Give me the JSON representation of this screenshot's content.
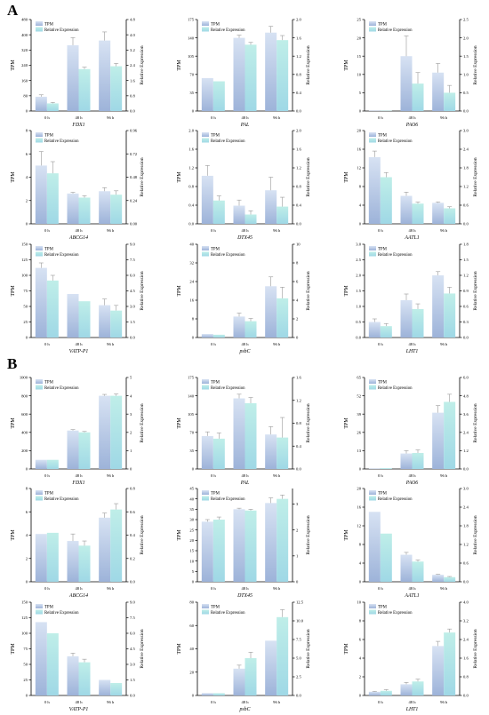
{
  "panels": [
    {
      "letter": "A"
    },
    {
      "letter": "B"
    }
  ],
  "colors": {
    "tpm_top": "#d7e2f3",
    "tpm_bottom": "#9db3d9",
    "rel_top": "#bfeee8",
    "rel_bottom": "#9fd8e6",
    "err": "#999999"
  },
  "chart_data": [
    {
      "type": "bar",
      "panel": "A",
      "xlabel": "FDX1",
      "categories": [
        "0 h",
        "48 h",
        "96 h"
      ],
      "ylabel": "TPM",
      "ylabel2": "Relative Expression",
      "ylim": [
        0,
        480
      ],
      "yticks": [
        0,
        80,
        160,
        240,
        320,
        400,
        480
      ],
      "y2lim": [
        0,
        4.8
      ],
      "y2ticks": [
        "0.0",
        "0.8",
        "1.6",
        "2.4",
        "3.2",
        "4.0",
        "4.8"
      ],
      "series": [
        {
          "name": "TPM",
          "values": [
            75,
            345,
            370
          ],
          "errors": [
            10,
            40,
            45
          ]
        },
        {
          "name": "Relative Expression",
          "values": [
            0.4,
            2.2,
            2.35
          ],
          "errors": [
            0.05,
            0.1,
            0.15
          ]
        }
      ]
    },
    {
      "type": "bar",
      "panel": "A",
      "xlabel": "PAL",
      "categories": [
        "0 h",
        "48 h",
        "96 h"
      ],
      "ylabel": "TPM",
      "ylabel2": "Relative Expression",
      "ylim": [
        0,
        175
      ],
      "yticks": [
        0,
        35,
        70,
        105,
        140,
        175
      ],
      "y2lim": [
        0,
        2.0
      ],
      "y2ticks": [
        "0.0",
        "0.4",
        "0.8",
        "1.2",
        "1.6",
        "2.0"
      ],
      "series": [
        {
          "name": "TPM",
          "values": [
            63,
            140,
            150
          ],
          "errors": [
            0,
            5,
            12
          ]
        },
        {
          "name": "Relative Expression",
          "values": [
            0.65,
            1.45,
            1.55
          ],
          "errors": [
            0,
            0.05,
            0.1
          ]
        }
      ]
    },
    {
      "type": "bar",
      "panel": "A",
      "xlabel": "PAO6",
      "categories": [
        "0 h",
        "48 h",
        "96 h"
      ],
      "ylabel": "TPM",
      "ylabel2": "Relative Expression",
      "ylim": [
        0,
        25
      ],
      "yticks": [
        0,
        5,
        10,
        15,
        20,
        25
      ],
      "y2lim": [
        0,
        2.5
      ],
      "y2ticks": [
        "0.0",
        "0.5",
        "1.0",
        "1.5",
        "2.0",
        "2.5"
      ],
      "series": [
        {
          "name": "TPM",
          "values": [
            0.1,
            15,
            10.5
          ],
          "errors": [
            0,
            5.5,
            2.5
          ]
        },
        {
          "name": "Relative Expression",
          "values": [
            0.01,
            0.75,
            0.5
          ],
          "errors": [
            0,
            0.3,
            0.2
          ]
        }
      ]
    },
    {
      "type": "bar",
      "panel": "A",
      "xlabel": "ABCG14",
      "categories": [
        "0 h",
        "48 h",
        "96 h"
      ],
      "ylabel": "TPM",
      "ylabel2": "Relative Expression",
      "ylim": [
        0,
        8
      ],
      "yticks": [
        0,
        2,
        4,
        6,
        8
      ],
      "y2lim": [
        0,
        0.96
      ],
      "y2ticks": [
        "0.00",
        "0.24",
        "0.48",
        "0.72",
        "0.96"
      ],
      "series": [
        {
          "name": "TPM",
          "values": [
            5.0,
            2.6,
            2.8
          ],
          "errors": [
            1.2,
            0.1,
            0.3
          ]
        },
        {
          "name": "Relative Expression",
          "values": [
            0.52,
            0.27,
            0.3
          ],
          "errors": [
            0.12,
            0.02,
            0.04
          ]
        }
      ]
    },
    {
      "type": "bar",
      "panel": "A",
      "xlabel": "DTX45",
      "categories": [
        "0 h",
        "48 h",
        "96 h"
      ],
      "ylabel": "TPM",
      "ylabel2": "Relative Expression",
      "ylim": [
        0,
        2.0
      ],
      "yticks": [
        "0.0",
        "0.4",
        "0.8",
        "1.2",
        "1.6",
        "2.0"
      ],
      "y2lim": [
        0,
        2.0
      ],
      "y2ticks": [
        "0.0",
        "0.4",
        "0.8",
        "1.2",
        "1.6",
        "2.0"
      ],
      "series": [
        {
          "name": "TPM",
          "values": [
            1.03,
            0.39,
            0.72
          ],
          "errors": [
            0.22,
            0.12,
            0.28
          ]
        },
        {
          "name": "Relative Expression",
          "values": [
            0.5,
            0.2,
            0.37
          ],
          "errors": [
            0.1,
            0.08,
            0.2
          ]
        }
      ]
    },
    {
      "type": "bar",
      "panel": "A",
      "xlabel": "AATL1",
      "categories": [
        "0 h",
        "48 h",
        "96 h"
      ],
      "ylabel": "TPM",
      "ylabel2": "Relative Expression",
      "ylim": [
        0,
        20
      ],
      "yticks": [
        0,
        4,
        8,
        12,
        16,
        20
      ],
      "y2lim": [
        0,
        3.0
      ],
      "y2ticks": [
        "0.0",
        "0.6",
        "1.2",
        "1.8",
        "2.4",
        "3.0"
      ],
      "series": [
        {
          "name": "TPM",
          "values": [
            14.3,
            6.0,
            4.5
          ],
          "errors": [
            1.3,
            0.8,
            0.2
          ]
        },
        {
          "name": "Relative Expression",
          "values": [
            1.5,
            0.65,
            0.5
          ],
          "errors": [
            0.15,
            0.05,
            0.05
          ]
        }
      ]
    },
    {
      "type": "bar",
      "panel": "A",
      "xlabel": "VATP-P1",
      "categories": [
        "0 h",
        "48 h",
        "96 h"
      ],
      "ylabel": "TPM",
      "ylabel2": "Relative Expression",
      "ylim": [
        0,
        150
      ],
      "yticks": [
        0,
        25,
        50,
        75,
        100,
        125,
        150
      ],
      "y2lim": [
        0,
        9.0
      ],
      "y2ticks": [
        "0.0",
        "1.5",
        "3.0",
        "4.5",
        "6.0",
        "7.5",
        "9.0"
      ],
      "series": [
        {
          "name": "TPM",
          "values": [
            112,
            70,
            52
          ],
          "errors": [
            8,
            0,
            10
          ]
        },
        {
          "name": "Relative Expression",
          "values": [
            5.5,
            3.5,
            2.6
          ],
          "errors": [
            0.5,
            0,
            0.5
          ]
        }
      ]
    },
    {
      "type": "bar",
      "panel": "A",
      "xlabel": "psbC",
      "categories": [
        "0 h",
        "48 h",
        "96 h"
      ],
      "ylabel": "TPM",
      "ylabel2": "Relative Expression",
      "ylim": [
        0,
        40
      ],
      "yticks": [
        0,
        8,
        16,
        24,
        32,
        40
      ],
      "y2lim": [
        0,
        10
      ],
      "y2ticks": [
        "0",
        "2",
        "4",
        "6",
        "8",
        "10"
      ],
      "series": [
        {
          "name": "TPM",
          "values": [
            1.5,
            9.0,
            22
          ],
          "errors": [
            0,
            1.5,
            4
          ]
        },
        {
          "name": "Relative Expression",
          "values": [
            0.3,
            1.75,
            4.2
          ],
          "errors": [
            0,
            0.3,
            1.2
          ]
        }
      ]
    },
    {
      "type": "bar",
      "panel": "A",
      "xlabel": "LHT1",
      "categories": [
        "0 h",
        "48 h",
        "96 h"
      ],
      "ylabel": "TPM",
      "ylabel2": "Relative Expression",
      "ylim": [
        0,
        3.0
      ],
      "yticks": [
        "0.0",
        "0.5",
        "1.0",
        "1.5",
        "2.0",
        "2.5",
        "3.0"
      ],
      "y2lim": [
        0,
        1.8
      ],
      "y2ticks": [
        "0.0",
        "0.3",
        "0.6",
        "0.9",
        "1.2",
        "1.5",
        "1.8"
      ],
      "series": [
        {
          "name": "TPM",
          "values": [
            0.5,
            1.2,
            2.0
          ],
          "errors": [
            0.1,
            0.2,
            0.12
          ]
        },
        {
          "name": "Relative Expression",
          "values": [
            0.22,
            0.55,
            0.85
          ],
          "errors": [
            0.05,
            0.1,
            0.12
          ]
        }
      ]
    },
    {
      "type": "bar",
      "panel": "B",
      "xlabel": "FDX1",
      "categories": [
        "0 h",
        "48 h",
        "96 h"
      ],
      "ylabel": "TPM",
      "ylabel2": "Relative Expression",
      "ylim": [
        0,
        1000
      ],
      "yticks": [
        0,
        200,
        400,
        600,
        800,
        1000
      ],
      "y2lim": [
        0,
        5
      ],
      "y2ticks": [
        "0",
        "1",
        "2",
        "3",
        "4",
        "5"
      ],
      "series": [
        {
          "name": "TPM",
          "values": [
            100,
            420,
            800
          ],
          "errors": [
            0,
            10,
            15
          ]
        },
        {
          "name": "Relative Expression",
          "values": [
            0.5,
            2.0,
            4.0
          ],
          "errors": [
            0,
            0.05,
            0.1
          ]
        }
      ]
    },
    {
      "type": "bar",
      "panel": "B",
      "xlabel": "PAL",
      "categories": [
        "0 h",
        "48 h",
        "96 h"
      ],
      "ylabel": "TPM",
      "ylabel2": "Relative Expression",
      "ylim": [
        0,
        175
      ],
      "yticks": [
        0,
        35,
        70,
        105,
        140,
        175
      ],
      "y2lim": [
        0,
        1.6
      ],
      "y2ticks": [
        "0.0",
        "0.4",
        "0.8",
        "1.2",
        "1.6"
      ],
      "series": [
        {
          "name": "TPM",
          "values": [
            63,
            135,
            66
          ],
          "errors": [
            8,
            8,
            15
          ]
        },
        {
          "name": "Relative Expression",
          "values": [
            0.53,
            1.15,
            0.55
          ],
          "errors": [
            0.1,
            0.1,
            0.35
          ]
        }
      ]
    },
    {
      "type": "bar",
      "panel": "B",
      "xlabel": "PAO6",
      "categories": [
        "0 h",
        "48 h",
        "96 h"
      ],
      "ylabel": "TPM",
      "ylabel2": "Relative Expression",
      "ylim": [
        0,
        65
      ],
      "yticks": [
        0,
        13,
        26,
        39,
        52,
        65
      ],
      "y2lim": [
        0,
        6.0
      ],
      "y2ticks": [
        "0.0",
        "1.2",
        "2.4",
        "3.6",
        "4.8",
        "6.0"
      ],
      "series": [
        {
          "name": "TPM",
          "values": [
            0.3,
            11,
            40
          ],
          "errors": [
            0,
            2,
            5
          ]
        },
        {
          "name": "Relative Expression",
          "values": [
            0.05,
            1.05,
            4.4
          ],
          "errors": [
            0,
            0.2,
            0.5
          ]
        }
      ]
    },
    {
      "type": "bar",
      "panel": "B",
      "xlabel": "ABCG14",
      "categories": [
        "0 h",
        "48 h",
        "96 h"
      ],
      "ylabel": "TPM",
      "ylabel2": "Relative Expression",
      "ylim": [
        0,
        8
      ],
      "yticks": [
        0,
        2,
        4,
        6,
        8
      ],
      "y2lim": [
        0,
        0.8
      ],
      "y2ticks": [
        "0.0",
        "0.2",
        "0.4",
        "0.6",
        "0.8"
      ],
      "series": [
        {
          "name": "TPM",
          "values": [
            4.1,
            3.5,
            5.5
          ],
          "errors": [
            0,
            0.6,
            0.4
          ]
        },
        {
          "name": "Relative Expression",
          "values": [
            0.42,
            0.31,
            0.62
          ],
          "errors": [
            0,
            0.04,
            0.05
          ]
        }
      ]
    },
    {
      "type": "bar",
      "panel": "B",
      "xlabel": "DTX45",
      "categories": [
        "0 h",
        "48 h",
        "96 h"
      ],
      "ylabel": "TPM",
      "ylabel2": "Relative Expression",
      "ylim": [
        0,
        45
      ],
      "yticks": [
        0,
        5,
        10,
        15,
        20,
        25,
        30,
        35,
        40,
        45
      ],
      "y2lim": [
        0,
        3.6
      ],
      "y2ticks": [
        "0",
        "1",
        "2",
        "3"
      ],
      "series": [
        {
          "name": "TPM",
          "values": [
            29,
            35,
            38
          ],
          "errors": [
            1,
            0.5,
            2.5
          ]
        },
        {
          "name": "Relative Expression",
          "values": [
            2.4,
            2.75,
            3.2
          ],
          "errors": [
            0.1,
            0.05,
            0.15
          ]
        }
      ]
    },
    {
      "type": "bar",
      "panel": "B",
      "xlabel": "AATL1",
      "categories": [
        "0 h",
        "48 h",
        "96 h"
      ],
      "ylabel": "TPM",
      "ylabel2": "Relative Expression",
      "ylim": [
        0,
        20
      ],
      "yticks": [
        0,
        4,
        8,
        12,
        16,
        20
      ],
      "y2lim": [
        0,
        3.0
      ],
      "y2ticks": [
        "0.0",
        "0.6",
        "1.2",
        "1.8",
        "2.4",
        "3.0"
      ],
      "series": [
        {
          "name": "TPM",
          "values": [
            15,
            5.8,
            1.5
          ],
          "errors": [
            0,
            0.5,
            0.1
          ]
        },
        {
          "name": "Relative Expression",
          "values": [
            1.55,
            0.65,
            0.15
          ],
          "errors": [
            0,
            0.05,
            0.02
          ]
        }
      ]
    },
    {
      "type": "bar",
      "panel": "B",
      "xlabel": "VATP-P1",
      "categories": [
        "0 h",
        "48 h",
        "96 h"
      ],
      "ylabel": "TPM",
      "ylabel2": "Relative Expression",
      "ylim": [
        0,
        150
      ],
      "yticks": [
        0,
        25,
        50,
        75,
        100,
        125,
        150
      ],
      "y2lim": [
        0,
        9.0
      ],
      "y2ticks": [
        "0.0",
        "1.5",
        "3.0",
        "4.5",
        "6.0",
        "7.5",
        "9.0"
      ],
      "series": [
        {
          "name": "TPM",
          "values": [
            118,
            63,
            25
          ],
          "errors": [
            0,
            5,
            0
          ]
        },
        {
          "name": "Relative Expression",
          "values": [
            6.0,
            3.2,
            1.2
          ],
          "errors": [
            0,
            0.3,
            0
          ]
        }
      ]
    },
    {
      "type": "bar",
      "panel": "B",
      "xlabel": "psbC",
      "categories": [
        "0 h",
        "48 h",
        "96 h"
      ],
      "ylabel": "TPM",
      "ylabel2": "Relative Expression",
      "ylim": [
        0,
        80
      ],
      "yticks": [
        0,
        20,
        40,
        60,
        80
      ],
      "y2lim": [
        0,
        12.5
      ],
      "y2ticks": [
        "0.0",
        "2.5",
        "5.0",
        "7.5",
        "10.0",
        "12.5"
      ],
      "series": [
        {
          "name": "TPM",
          "values": [
            2,
            23,
            47
          ],
          "errors": [
            0,
            3,
            0
          ]
        },
        {
          "name": "Relative Expression",
          "values": [
            0.3,
            5.0,
            10.5
          ],
          "errors": [
            0,
            0.8,
            1.0
          ]
        }
      ]
    },
    {
      "type": "bar",
      "panel": "B",
      "xlabel": "LHT1",
      "categories": [
        "0 h",
        "48 h",
        "96 h"
      ],
      "ylabel": "TPM",
      "ylabel2": "Relative Expression",
      "ylim": [
        0,
        10
      ],
      "yticks": [
        0,
        2,
        4,
        6,
        8,
        10
      ],
      "y2lim": [
        0,
        4.0
      ],
      "y2ticks": [
        "0.0",
        "0.8",
        "1.6",
        "2.4",
        "3.2",
        "4.0"
      ],
      "series": [
        {
          "name": "TPM",
          "values": [
            0.4,
            1.2,
            5.3
          ],
          "errors": [
            0.05,
            0.2,
            0.5
          ]
        },
        {
          "name": "Relative Expression",
          "values": [
            0.2,
            0.6,
            2.7
          ],
          "errors": [
            0.05,
            0.1,
            0.15
          ]
        }
      ]
    }
  ]
}
